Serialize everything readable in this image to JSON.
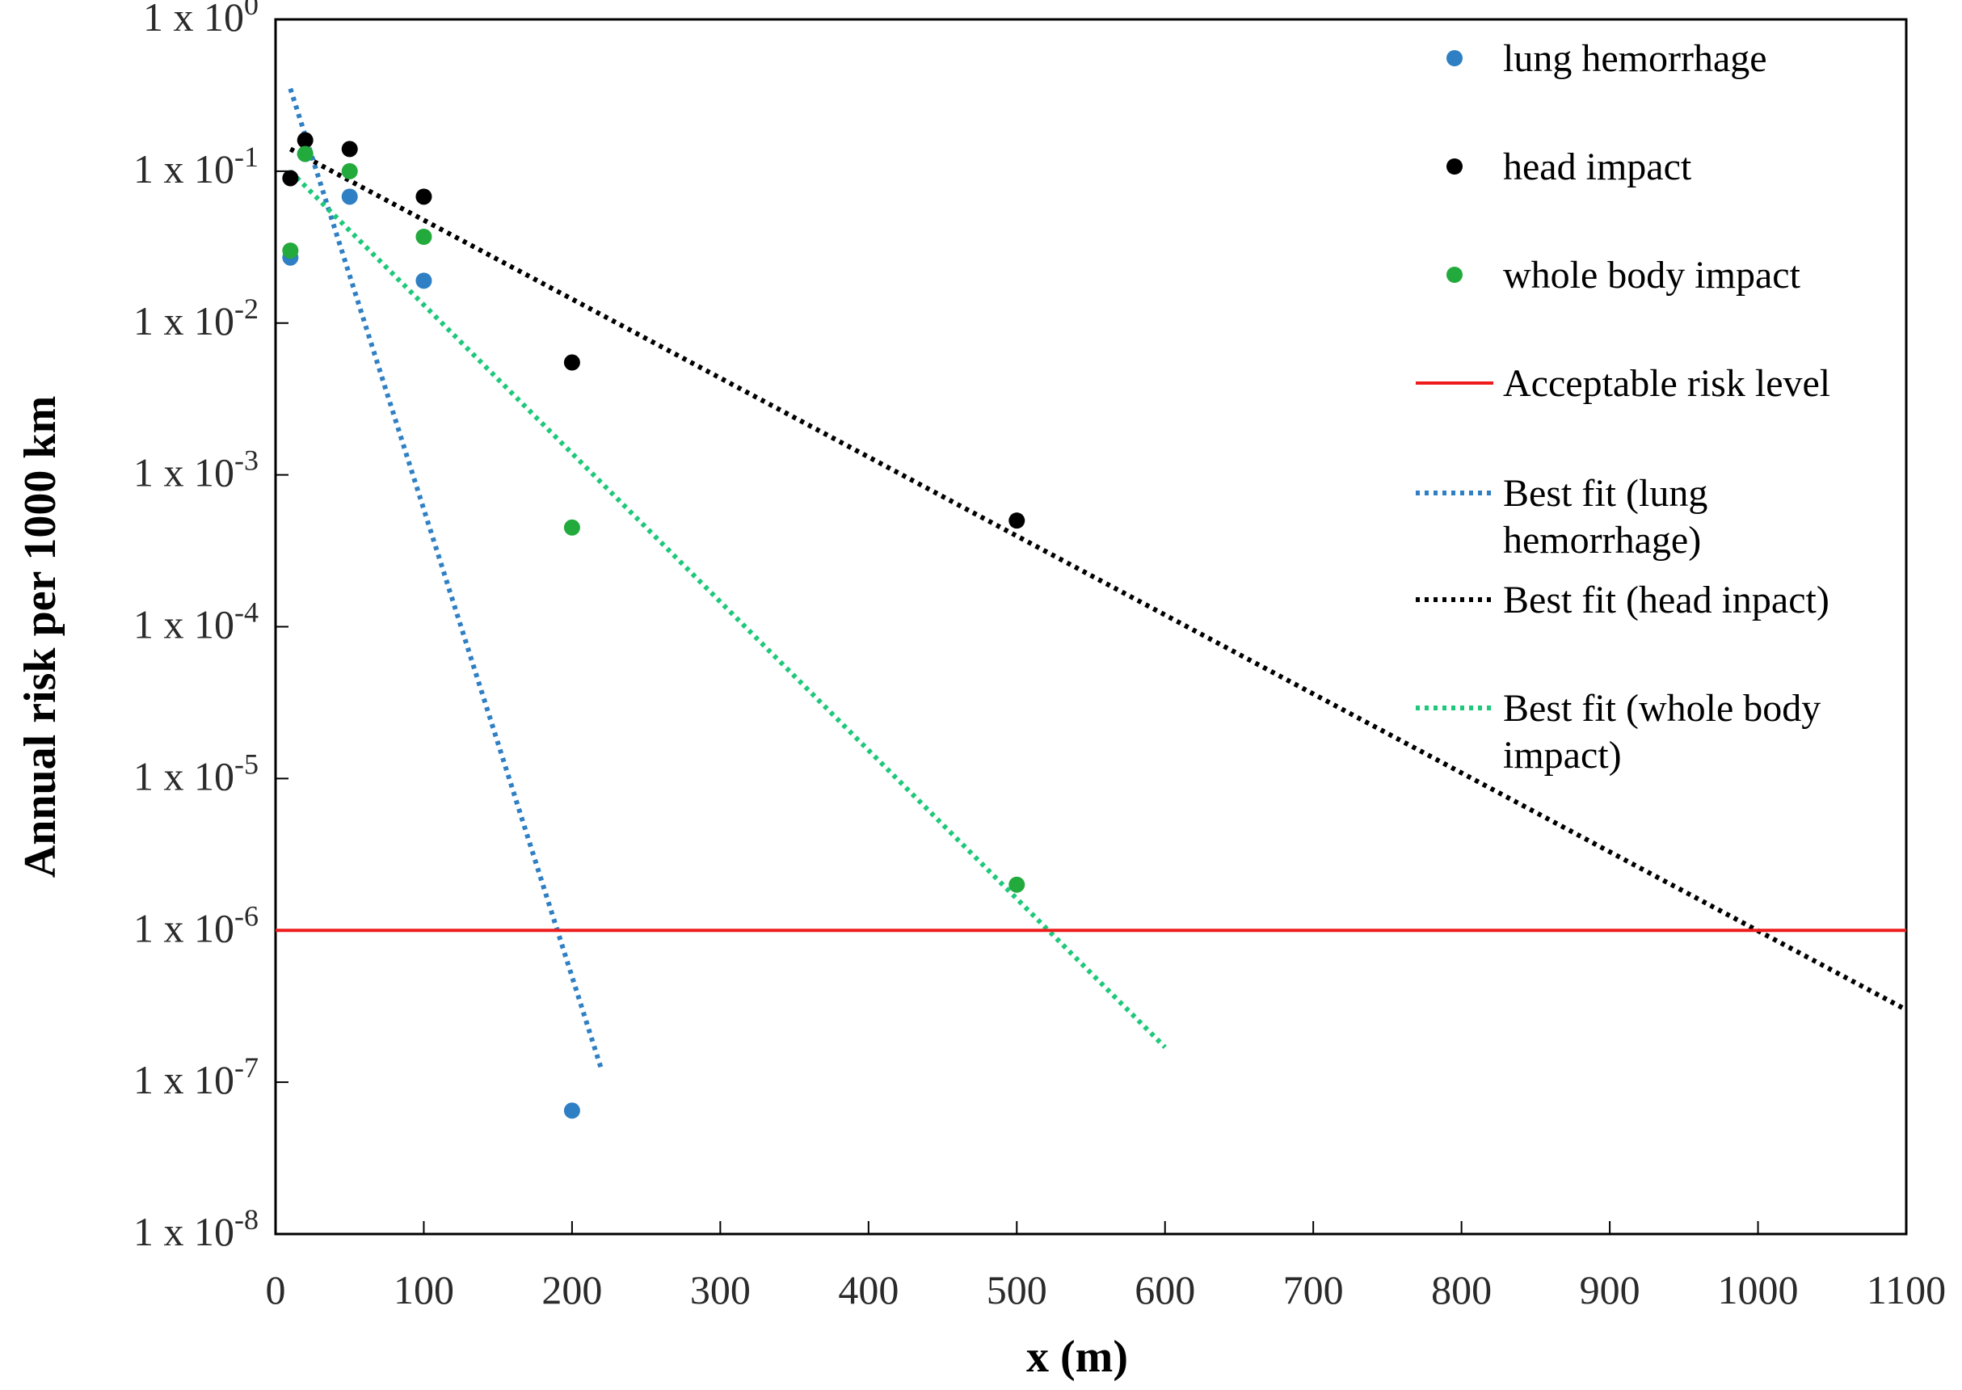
{
  "chart_data": {
    "type": "scatter",
    "xlabel": "x (m)",
    "ylabel": "Annual risk per 1000 km",
    "xlim": [
      0,
      1100
    ],
    "xticks": [
      0,
      100,
      200,
      300,
      400,
      500,
      600,
      700,
      800,
      900,
      1000,
      1100
    ],
    "yscale": "log",
    "ylim": [
      1e-08,
      1
    ],
    "ytick_exponents": [
      0,
      -1,
      -2,
      -3,
      -4,
      -5,
      -6,
      -7,
      -8
    ],
    "ytick_prefix": "1 x 10",
    "grid": false,
    "legend_position": "top-right",
    "series": [
      {
        "name": "lung hemorrhage",
        "kind": "scatter",
        "color": "#2e7fc4",
        "x": [
          10,
          20,
          50,
          100,
          200
        ],
        "y": [
          0.027,
          0.13,
          0.068,
          0.019,
          6.5e-08
        ]
      },
      {
        "name": "head impact",
        "kind": "scatter",
        "color": "#000000",
        "x": [
          10,
          20,
          50,
          100,
          200,
          500
        ],
        "y": [
          0.09,
          0.16,
          0.14,
          0.068,
          0.0055,
          0.0005
        ]
      },
      {
        "name": "whole body impact",
        "kind": "scatter",
        "color": "#22aa3c",
        "x": [
          10,
          20,
          50,
          100,
          200,
          500
        ],
        "y": [
          0.03,
          0.13,
          0.1,
          0.037,
          0.00045,
          2e-06
        ]
      },
      {
        "name": "Acceptable risk level",
        "kind": "hline",
        "color": "#ee1c1c",
        "y": 1e-06,
        "x": [
          0,
          1100
        ]
      },
      {
        "name": "Best fit (lung hemorrhage)",
        "kind": "fit",
        "color": "#2e7fc4",
        "x": [
          10,
          220
        ],
        "y": [
          0.35,
          1.2e-07
        ]
      },
      {
        "name": "Best fit (head inpact)",
        "kind": "fit",
        "color": "#000000",
        "x": [
          10,
          1100
        ],
        "y": [
          0.14,
          3e-07
        ]
      },
      {
        "name": "Best fit (whole body impact)",
        "kind": "fit",
        "color": "#1ec87a",
        "x": [
          10,
          600
        ],
        "y": [
          0.1,
          1.7e-07
        ]
      }
    ],
    "legend": [
      {
        "type": "marker",
        "color": "#2e7fc4",
        "lines": [
          "lung hemorrhage"
        ]
      },
      {
        "type": "marker",
        "color": "#000000",
        "lines": [
          "head impact"
        ]
      },
      {
        "type": "marker",
        "color": "#22aa3c",
        "lines": [
          "whole body impact"
        ]
      },
      {
        "type": "solid",
        "color": "#ee1c1c",
        "lines": [
          "Acceptable risk level"
        ]
      },
      {
        "type": "dotted",
        "color": "#2e7fc4",
        "lines": [
          "Best fit (lung",
          "hemorrhage)"
        ]
      },
      {
        "type": "dotted",
        "color": "#000000",
        "lines": [
          "Best fit (head inpact)"
        ]
      },
      {
        "type": "dotted",
        "color": "#1ec87a",
        "lines": [
          "Best fit (whole body",
          "impact)"
        ]
      }
    ]
  }
}
